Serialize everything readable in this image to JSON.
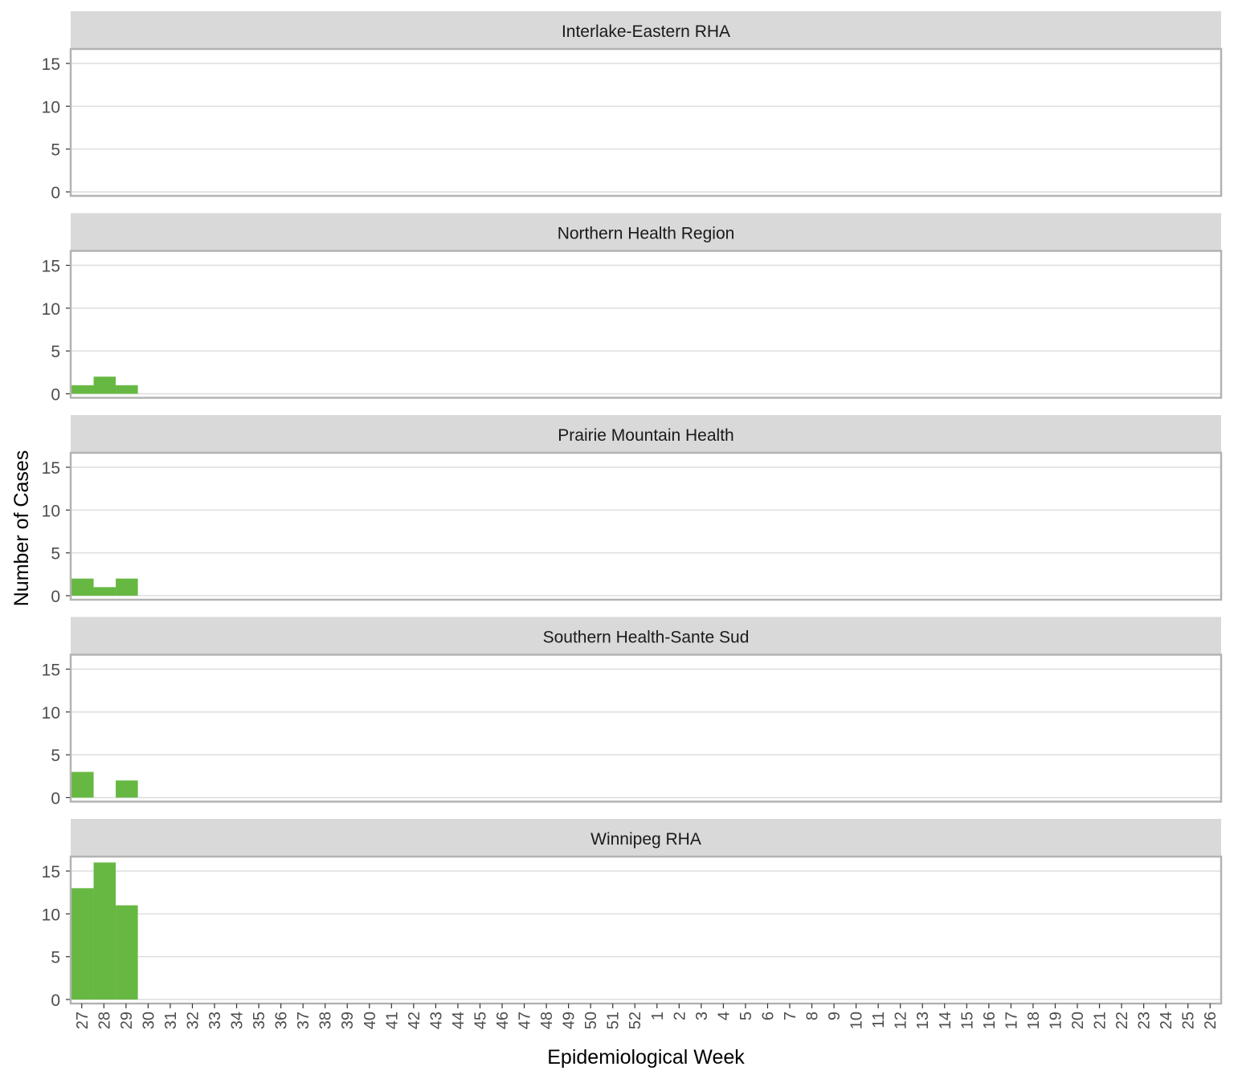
{
  "chart_data": {
    "type": "bar",
    "layout": "faceted",
    "xlabel": "Epidemiological Week",
    "ylabel": "Number of Cases",
    "ylim": [
      0,
      17
    ],
    "yticks": [
      0,
      5,
      10,
      15
    ],
    "grid": true,
    "bar_color": "#66b842",
    "strip_color": "#d9d9d9",
    "frame_color": "#b3b3b3",
    "categories": [
      "27",
      "28",
      "29",
      "30",
      "31",
      "32",
      "33",
      "34",
      "35",
      "36",
      "37",
      "38",
      "39",
      "40",
      "41",
      "42",
      "43",
      "44",
      "45",
      "46",
      "47",
      "48",
      "49",
      "50",
      "51",
      "52",
      "1",
      "2",
      "3",
      "4",
      "5",
      "6",
      "7",
      "8",
      "9",
      "10",
      "11",
      "12",
      "13",
      "14",
      "15",
      "16",
      "17",
      "18",
      "19",
      "20",
      "21",
      "22",
      "23",
      "24",
      "25",
      "26"
    ],
    "panels": [
      {
        "name": "Interlake-Eastern RHA",
        "values": [
          0,
          0,
          0,
          0,
          0,
          0,
          0,
          0,
          0,
          0,
          0,
          0,
          0,
          0,
          0,
          0,
          0,
          0,
          0,
          0,
          0,
          0,
          0,
          0,
          0,
          0,
          0,
          0,
          0,
          0,
          0,
          0,
          0,
          0,
          0,
          0,
          0,
          0,
          0,
          0,
          0,
          0,
          0,
          0,
          0,
          0,
          0,
          0,
          0,
          0,
          0,
          0
        ]
      },
      {
        "name": "Northern Health Region",
        "values": [
          1,
          2,
          1,
          0,
          0,
          0,
          0,
          0,
          0,
          0,
          0,
          0,
          0,
          0,
          0,
          0,
          0,
          0,
          0,
          0,
          0,
          0,
          0,
          0,
          0,
          0,
          0,
          0,
          0,
          0,
          0,
          0,
          0,
          0,
          0,
          0,
          0,
          0,
          0,
          0,
          0,
          0,
          0,
          0,
          0,
          0,
          0,
          0,
          0,
          0,
          0,
          0
        ]
      },
      {
        "name": "Prairie Mountain Health",
        "values": [
          2,
          1,
          2,
          0,
          0,
          0,
          0,
          0,
          0,
          0,
          0,
          0,
          0,
          0,
          0,
          0,
          0,
          0,
          0,
          0,
          0,
          0,
          0,
          0,
          0,
          0,
          0,
          0,
          0,
          0,
          0,
          0,
          0,
          0,
          0,
          0,
          0,
          0,
          0,
          0,
          0,
          0,
          0,
          0,
          0,
          0,
          0,
          0,
          0,
          0,
          0,
          0
        ]
      },
      {
        "name": "Southern Health-Sante Sud",
        "values": [
          3,
          0,
          2,
          0,
          0,
          0,
          0,
          0,
          0,
          0,
          0,
          0,
          0,
          0,
          0,
          0,
          0,
          0,
          0,
          0,
          0,
          0,
          0,
          0,
          0,
          0,
          0,
          0,
          0,
          0,
          0,
          0,
          0,
          0,
          0,
          0,
          0,
          0,
          0,
          0,
          0,
          0,
          0,
          0,
          0,
          0,
          0,
          0,
          0,
          0,
          0,
          0
        ]
      },
      {
        "name": "Winnipeg RHA",
        "values": [
          13,
          16,
          11,
          0,
          0,
          0,
          0,
          0,
          0,
          0,
          0,
          0,
          0,
          0,
          0,
          0,
          0,
          0,
          0,
          0,
          0,
          0,
          0,
          0,
          0,
          0,
          0,
          0,
          0,
          0,
          0,
          0,
          0,
          0,
          0,
          0,
          0,
          0,
          0,
          0,
          0,
          0,
          0,
          0,
          0,
          0,
          0,
          0,
          0,
          0,
          0,
          0
        ]
      }
    ]
  }
}
